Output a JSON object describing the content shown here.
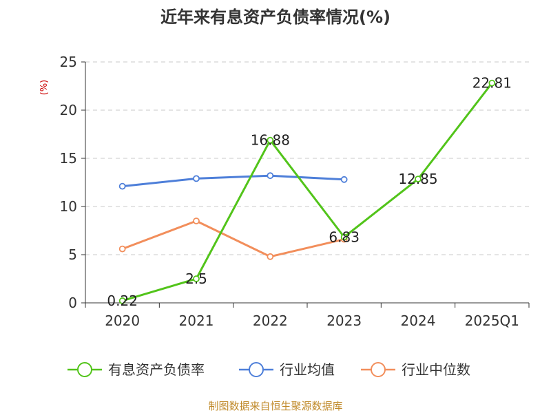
{
  "chart_data": {
    "type": "line",
    "title": "近年来有息资产负债率情况(%)",
    "ylabel": "(%)",
    "categories": [
      "2020",
      "2021",
      "2022",
      "2023",
      "2024",
      "2025Q1"
    ],
    "ylim": [
      0,
      25
    ],
    "yticks": [
      0,
      5,
      10,
      15,
      20,
      25
    ],
    "grid": true,
    "legend_position": "bottom",
    "series": [
      {
        "name": "有息资产负债率",
        "color": "#52c41a",
        "values": [
          0.22,
          2.5,
          16.88,
          6.83,
          12.85,
          22.81
        ],
        "labels": [
          "0.22",
          "2.5",
          "16.88",
          "6.83",
          "12.85",
          "22.81"
        ]
      },
      {
        "name": "行业均值",
        "color": "#4e7fd9",
        "values": [
          12.1,
          12.9,
          13.2,
          12.8,
          null,
          null
        ]
      },
      {
        "name": "行业中位数",
        "color": "#f28e5b",
        "values": [
          5.6,
          8.5,
          4.8,
          6.6,
          null,
          null
        ]
      }
    ]
  },
  "source": "制图数据来自恒生聚源数据库"
}
